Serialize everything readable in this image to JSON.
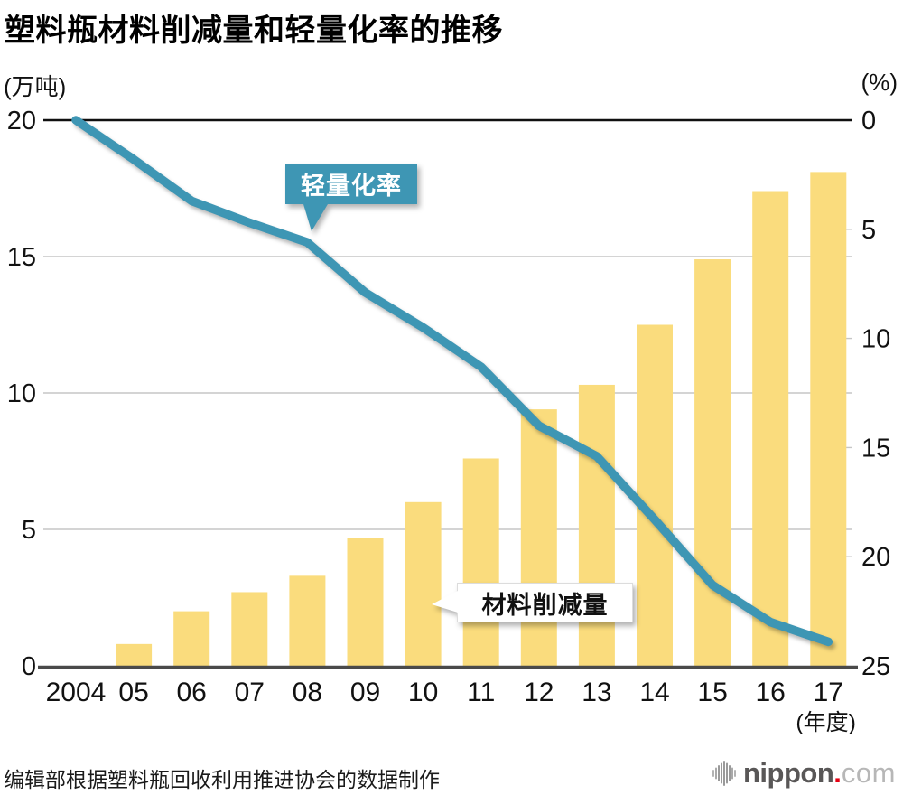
{
  "title": "塑料瓶材料削减量和轻量化率的推移",
  "source_note": "编辑部根据塑料瓶回收利用推进协会的数据制作",
  "logo": {
    "brand_bold": "nippon",
    "brand_dot": ".",
    "brand_light": "com",
    "dot_color": "#e60012"
  },
  "chart_data": {
    "type": "bar+line",
    "title": "塑料瓶材料削减量和轻量化率的推移",
    "categories": [
      "2004",
      "05",
      "06",
      "07",
      "08",
      "09",
      "10",
      "11",
      "12",
      "13",
      "14",
      "15",
      "16",
      "17"
    ],
    "x_axis_suffix": "(年度)",
    "series": [
      {
        "name": "材料削减量",
        "type": "bar",
        "axis": "left",
        "unit": "万吨",
        "color": "#fadc7d",
        "values": [
          0,
          0.8,
          2.0,
          2.7,
          3.3,
          4.7,
          6.0,
          7.6,
          9.4,
          10.3,
          12.5,
          14.9,
          17.4,
          18.1
        ]
      },
      {
        "name": "轻量化率",
        "type": "line",
        "axis": "right",
        "unit": "%",
        "color": "#3e96b4",
        "values": [
          0,
          1.8,
          3.7,
          4.7,
          5.6,
          7.9,
          9.5,
          11.3,
          14.0,
          15.4,
          18.3,
          21.3,
          23.0,
          23.9
        ]
      }
    ],
    "left_axis": {
      "unit_label": "(万吨)",
      "range": [
        0,
        20
      ],
      "ticks": [
        0,
        5,
        10,
        15,
        20
      ],
      "inverted": false
    },
    "right_axis": {
      "unit_label": "(%)",
      "range": [
        0,
        25
      ],
      "ticks": [
        0,
        5,
        10,
        15,
        20,
        25
      ],
      "inverted": true
    },
    "grid": "horizontal",
    "callouts": [
      {
        "label": "轻量化率",
        "points_to": "line"
      },
      {
        "label": "材料削减量",
        "points_to": "bar"
      }
    ]
  }
}
